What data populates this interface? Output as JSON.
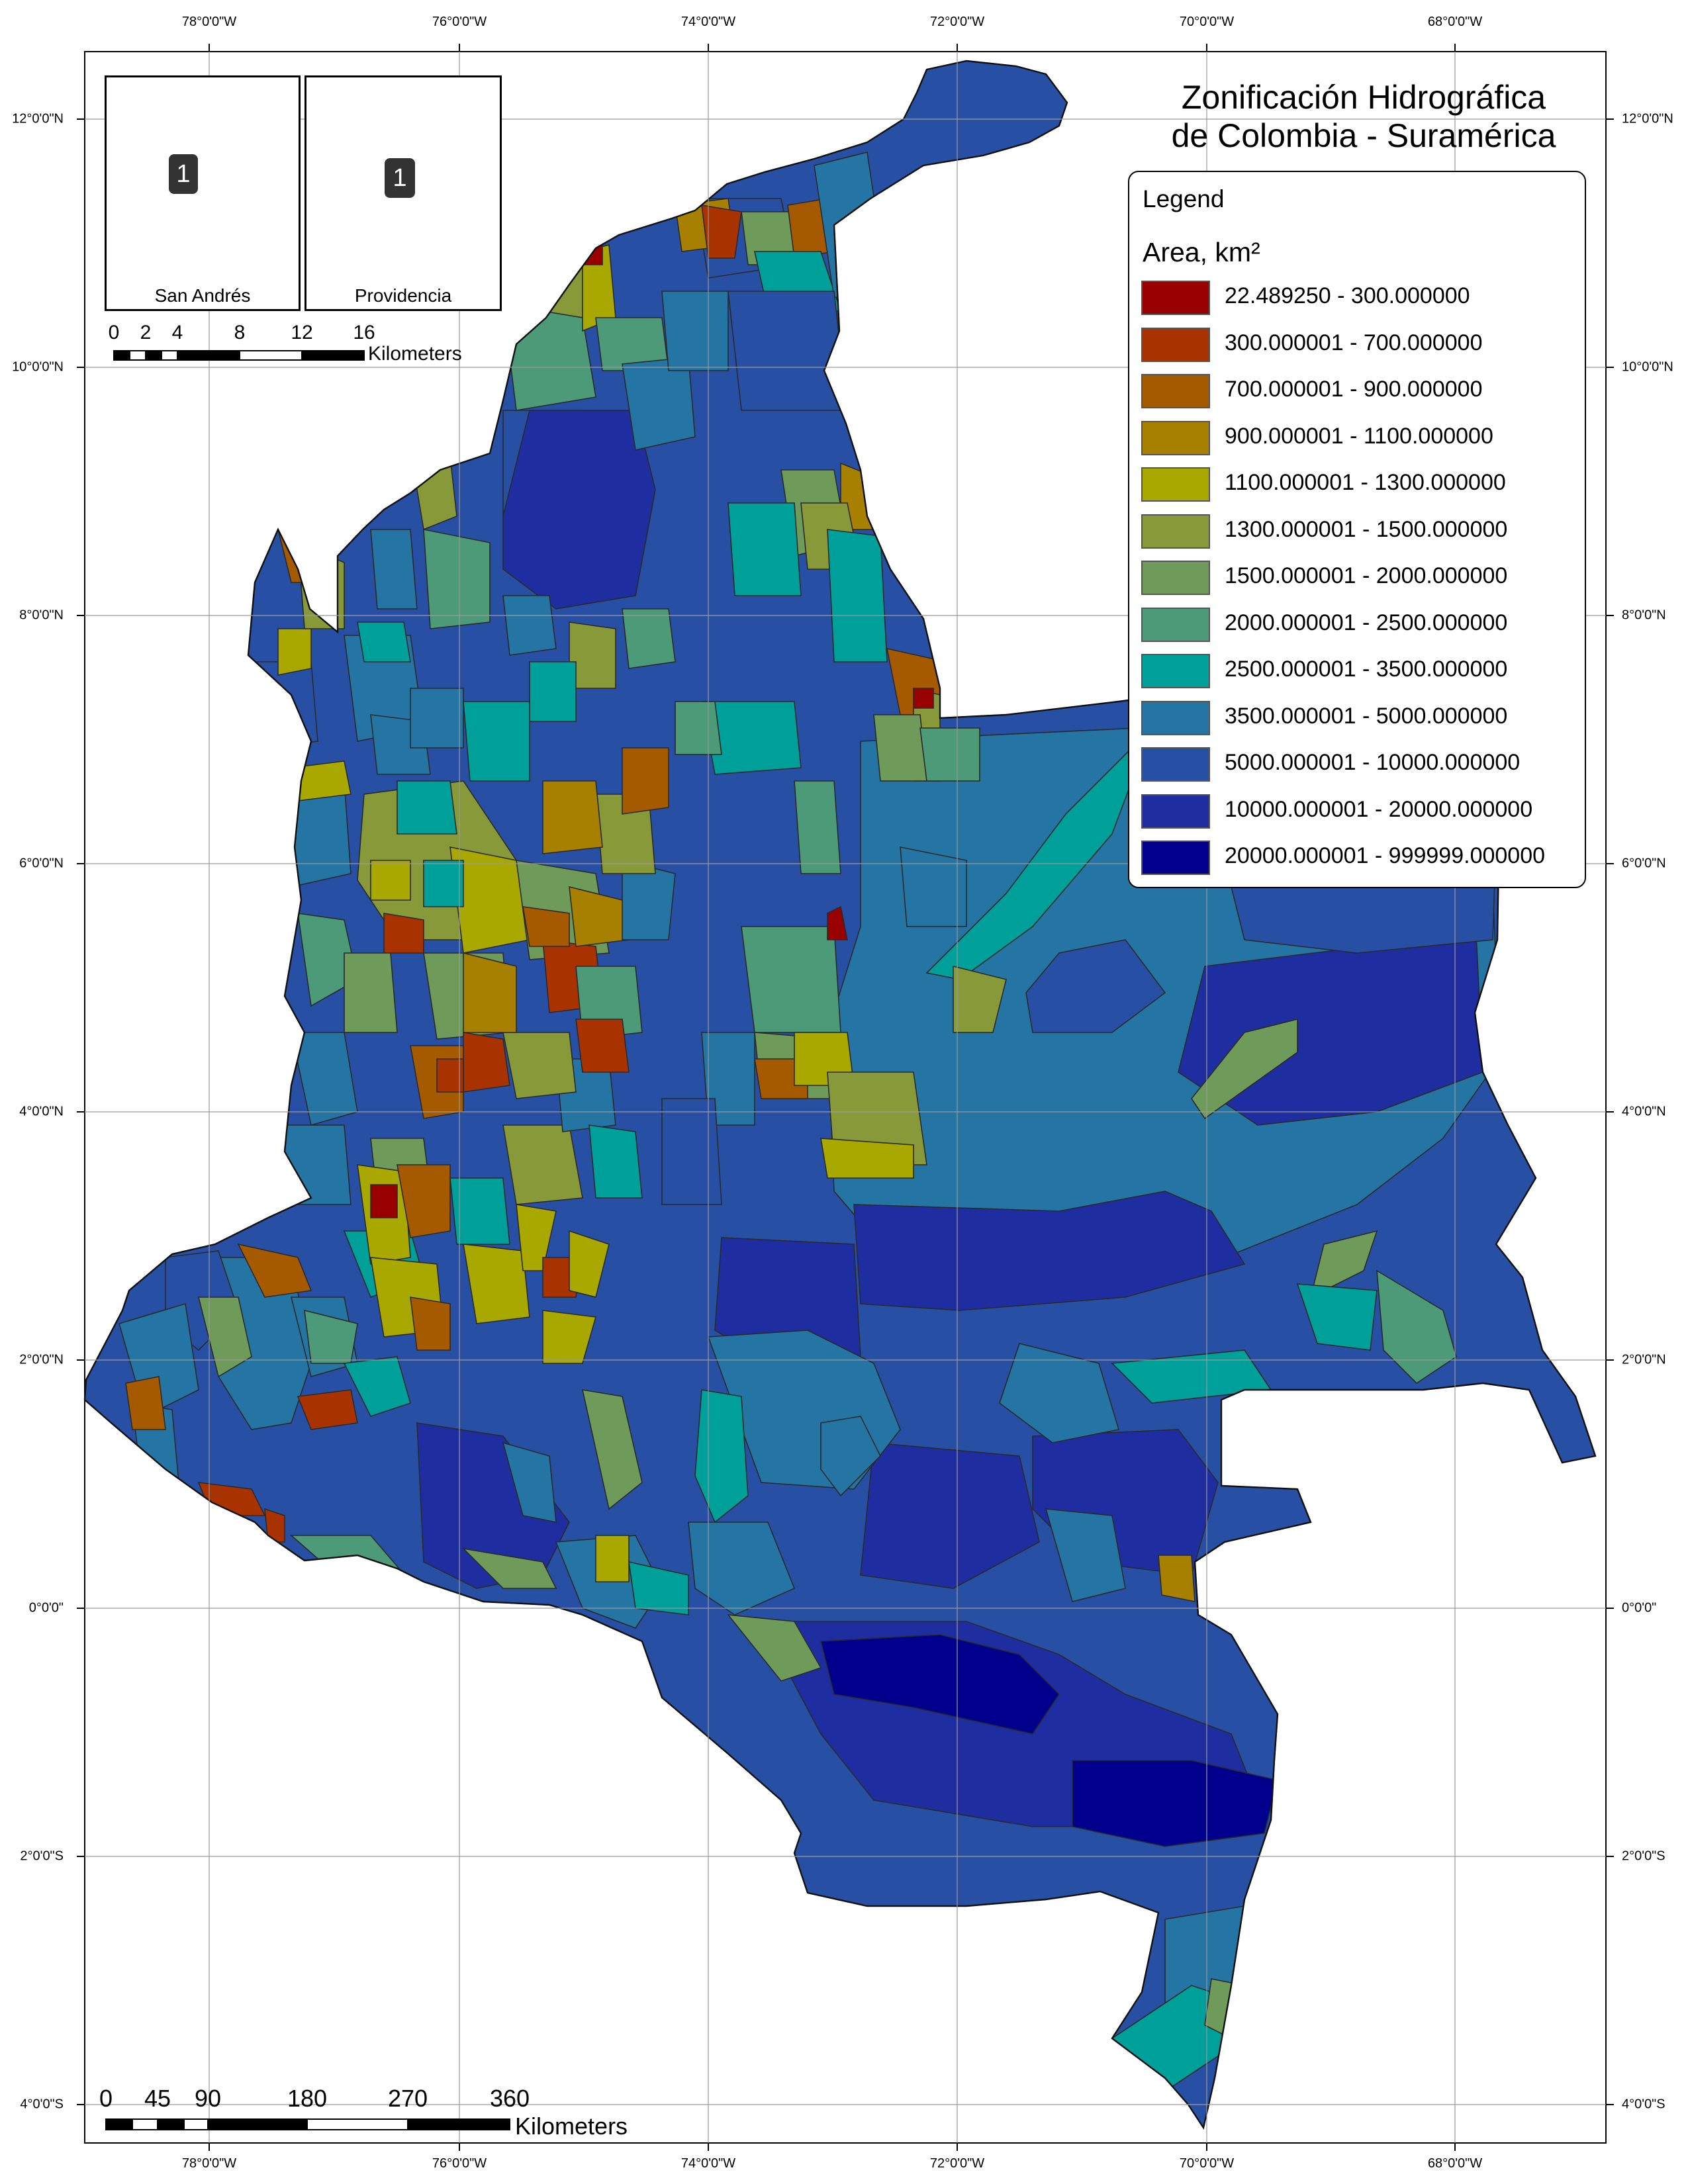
{
  "title": {
    "line1": "Zonificación Hidrográfica",
    "line2": "de Colombia - Suramérica"
  },
  "legend": {
    "heading": "Legend",
    "subheading": "Area, km²",
    "classes": [
      {
        "label": "22.489250 - 300.000000",
        "color": "#990000"
      },
      {
        "label": "300.000001 - 700.000000",
        "color": "#a83300"
      },
      {
        "label": "700.000001 - 900.000000",
        "color": "#a65a00"
      },
      {
        "label": "900.000001 - 1100.000000",
        "color": "#a88000"
      },
      {
        "label": "1100.000001 - 1300.000000",
        "color": "#a8a800"
      },
      {
        "label": "1300.000001 - 1500.000000",
        "color": "#88993a"
      },
      {
        "label": "1500.000001 - 2000.000000",
        "color": "#6e9a5a"
      },
      {
        "label": "2000.000001 - 2500.000000",
        "color": "#4c9a78"
      },
      {
        "label": "2500.000001 - 3500.000000",
        "color": "#00a09a"
      },
      {
        "label": "3500.000001 - 5000.000000",
        "color": "#2475a3"
      },
      {
        "label": "5000.000001 - 10000.000000",
        "color": "#2750a5"
      },
      {
        "label": "10000.000001 - 20000.000000",
        "color": "#1e2ea0"
      },
      {
        "label": "20000.000001 - 999999.000000",
        "color": "#00008c"
      }
    ]
  },
  "graticule": {
    "longitude_labels": [
      "78°0'0\"W",
      "76°0'0\"W",
      "74°0'0\"W",
      "72°0'0\"W",
      "70°0'0\"W",
      "68°0'0\"W"
    ],
    "latitude_labels": [
      "12°0'0\"N",
      "10°0'0\"N",
      "8°0'0\"N",
      "6°0'0\"N",
      "4°0'0\"N",
      "2°0'0\"N",
      "0°0'0\"",
      "2°0'0\"S",
      "4°0'0\"S"
    ]
  },
  "insets": [
    {
      "name": "San Andrés",
      "badge": "1"
    },
    {
      "name": "Providencia",
      "badge": "1"
    }
  ],
  "inset_scale_bar": {
    "ticks": [
      "0",
      "2",
      "4",
      "8",
      "12",
      "16"
    ],
    "unit": "Kilometers"
  },
  "main_scale_bar": {
    "ticks": [
      "0",
      "45",
      "90",
      "180",
      "270",
      "360"
    ],
    "unit": "Kilometers"
  }
}
